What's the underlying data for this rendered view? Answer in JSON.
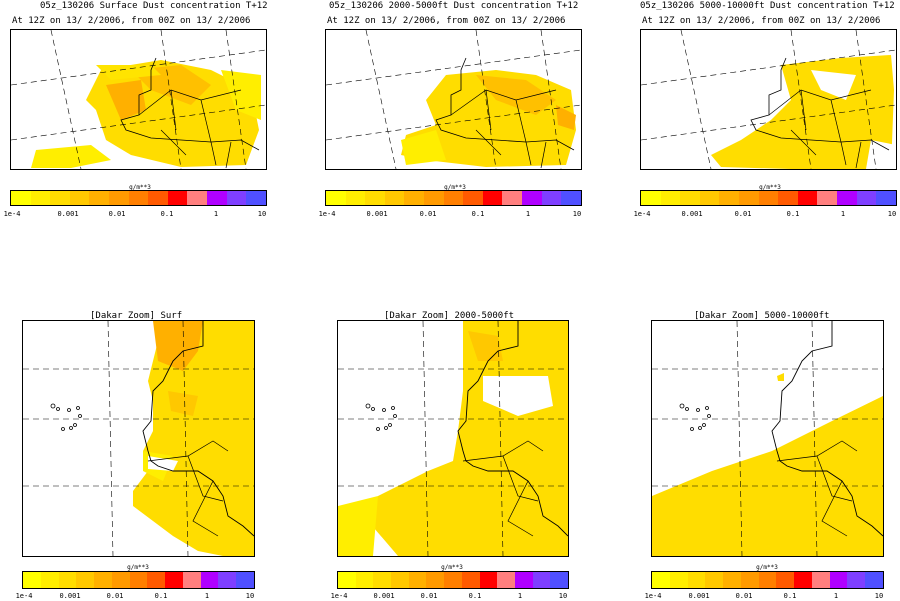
{
  "top_panels": [
    {
      "title": "05z_130206 Surface Dust concentration T+12",
      "subtitle": "At 12Z on 13/ 2/2006, from 00Z on 13/ 2/2006"
    },
    {
      "title": "05z_130206 2000-5000ft Dust concentration T+12",
      "subtitle": "At 12Z on 13/ 2/2006, from 00Z on 13/ 2/2006"
    },
    {
      "title": "05z_130206 5000-10000ft Dust concentration T+12",
      "subtitle": "At 12Z on 13/ 2/2006, from 00Z on 13/ 2/2006"
    }
  ],
  "zoom_panels": [
    {
      "title": "[Dakar Zoom] Surf"
    },
    {
      "title": "[Dakar Zoom] 2000-5000ft"
    },
    {
      "title": "[Dakar Zoom] 5000-10000ft"
    }
  ],
  "colorbar": {
    "unit": "g/m**3",
    "ticks": [
      "1e-4",
      "0.001",
      "0.01",
      "0.1",
      "1",
      "10"
    ],
    "colors": [
      "#ffff00",
      "#ffee00",
      "#ffdd00",
      "#ffc800",
      "#ffb000",
      "#ff9a00",
      "#ff7f00",
      "#ff5a00",
      "#ff0000",
      "#ff7f7f",
      "#b000ff",
      "#7f3fff",
      "#5050ff"
    ]
  }
}
